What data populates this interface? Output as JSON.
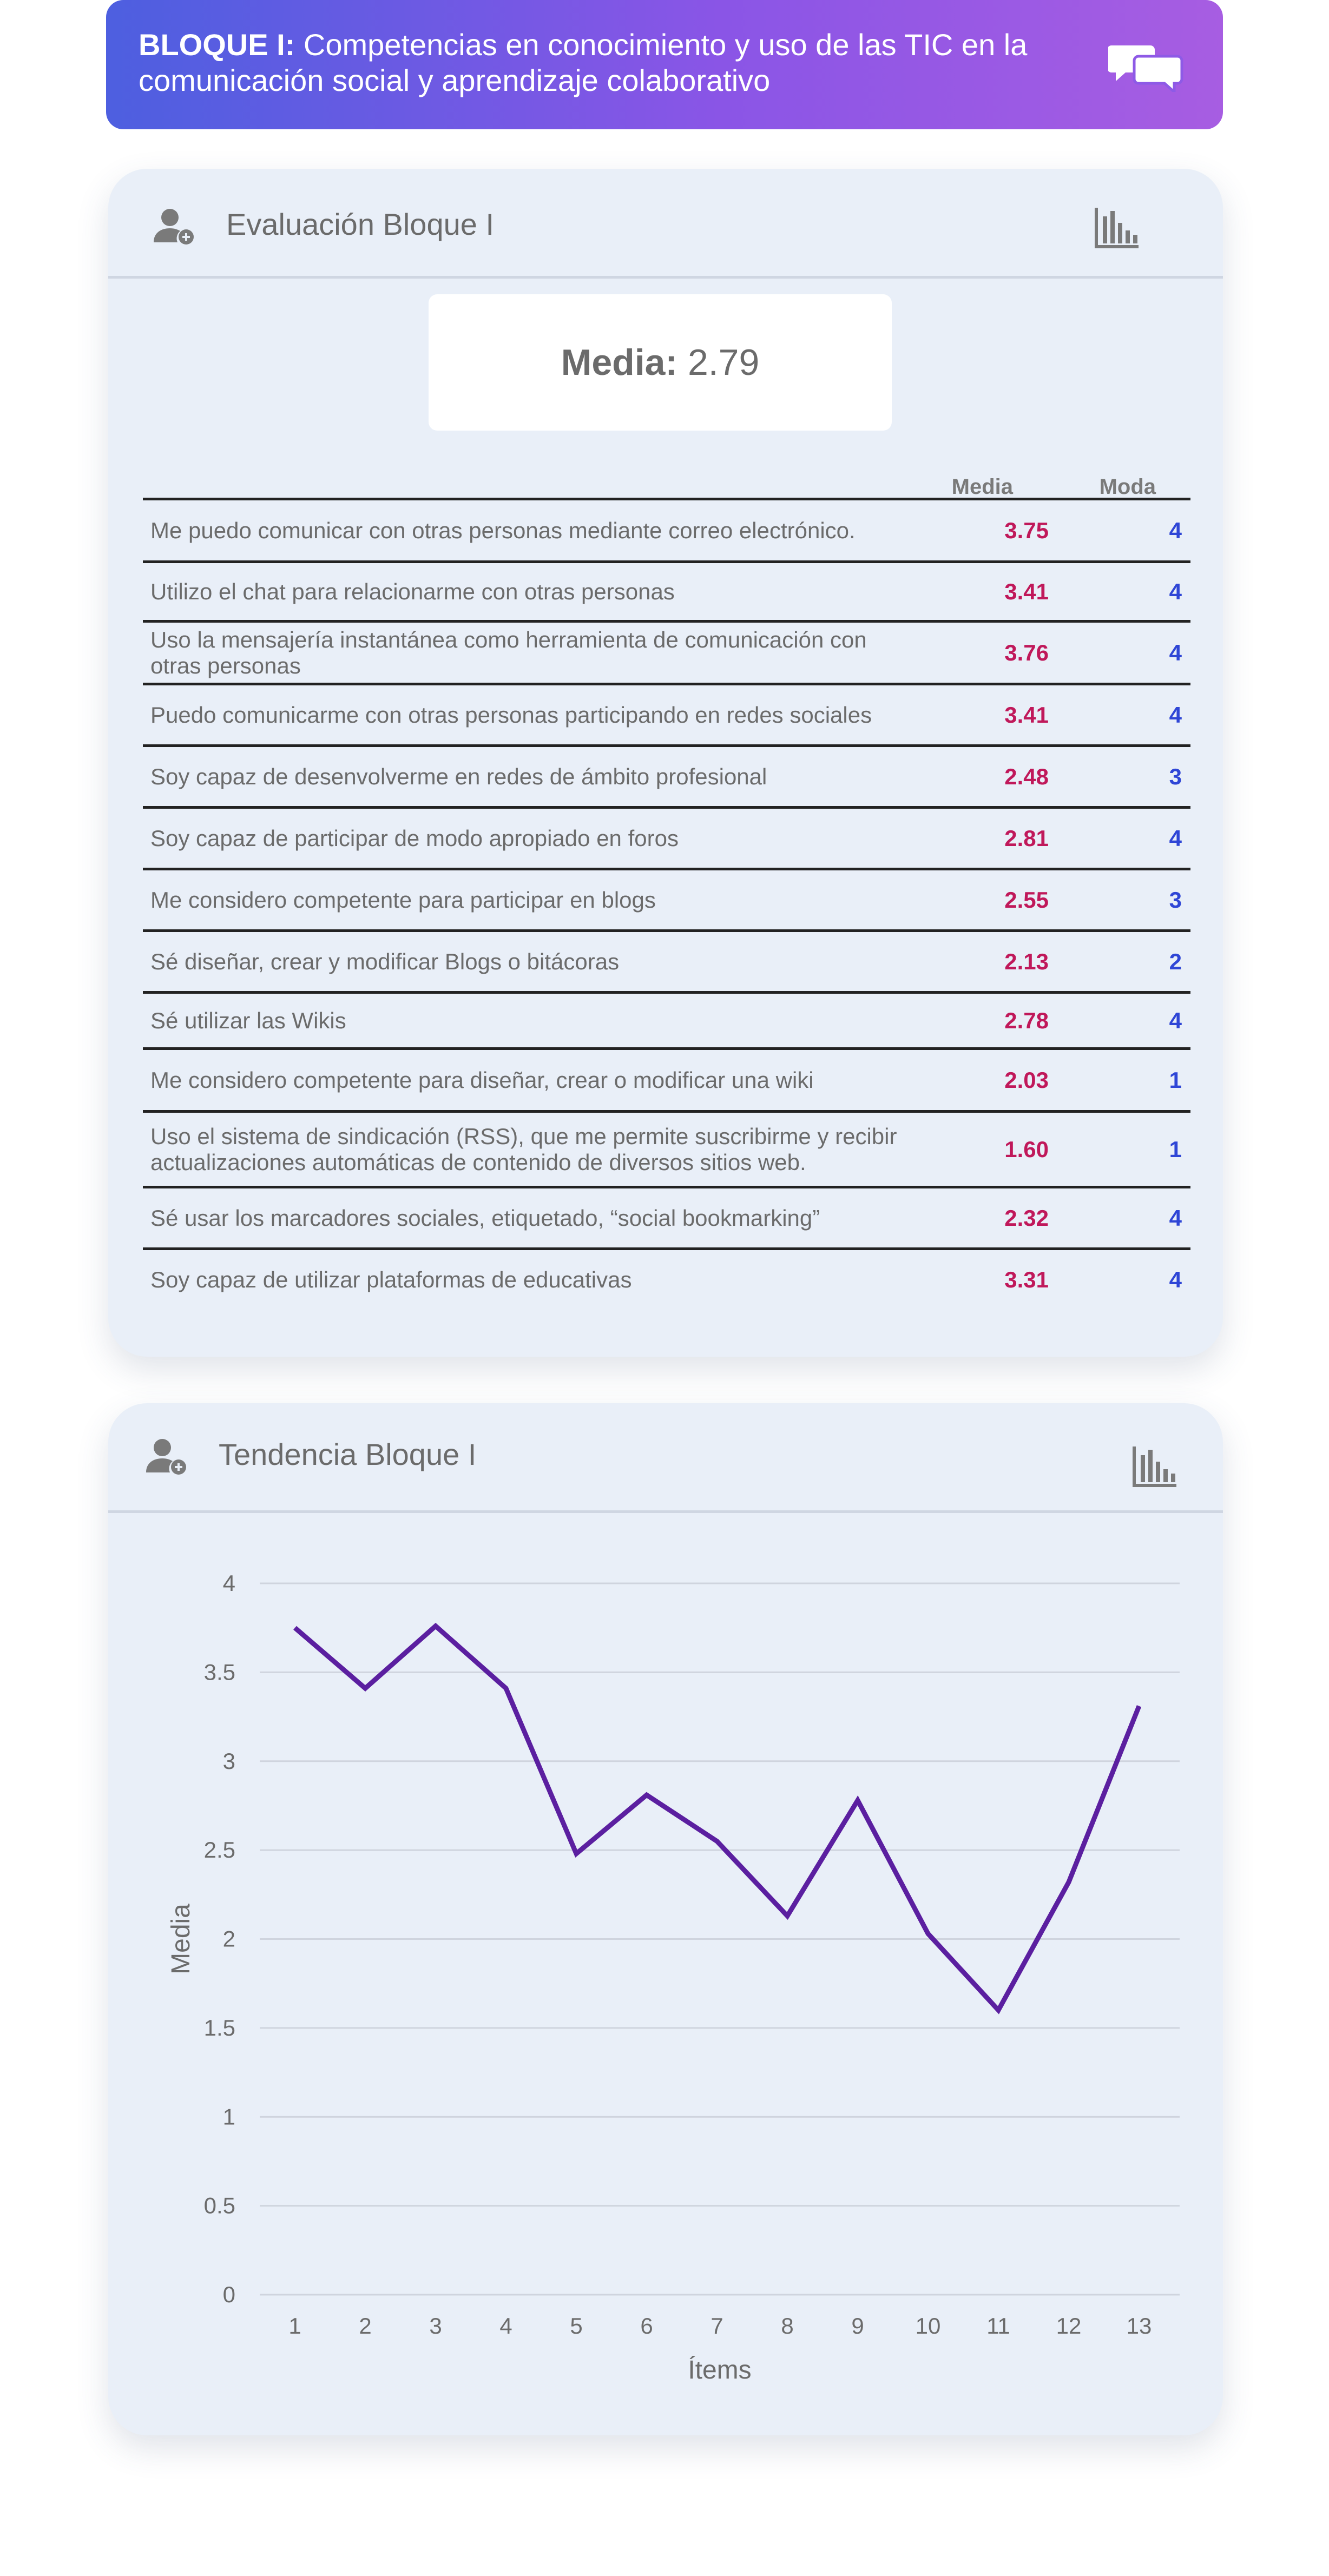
{
  "banner": {
    "bold": "BLOQUE I:",
    "text": "Competencias en conocimiento y uso de las TIC en la comunicación social y aprendizaje colaborativo",
    "icon": "chat-bubbles-icon"
  },
  "card1": {
    "title": "Evaluación Bloque I",
    "mean_label": "Media:",
    "mean_value": "2.79",
    "col_media": "Media",
    "col_moda": "Moda",
    "rows": [
      {
        "label": "Me puedo comunicar con otras personas mediante correo electrónico.",
        "media": "3.75",
        "moda": "4"
      },
      {
        "label": "Utilizo el chat para relacionarme con otras personas",
        "media": "3.41",
        "moda": "4"
      },
      {
        "label": "Uso la mensajería instantánea como herramienta de comunicación con otras personas",
        "media": "3.76",
        "moda": "4"
      },
      {
        "label": "Puedo comunicarme con otras personas participando en redes sociales",
        "media": "3.41",
        "moda": "4"
      },
      {
        "label": "Soy capaz de desenvolverme en redes de ámbito profesional",
        "media": "2.48",
        "moda": "3"
      },
      {
        "label": "Soy capaz de participar de modo apropiado en foros",
        "media": "2.81",
        "moda": "4"
      },
      {
        "label": "Me considero competente para participar en blogs",
        "media": "2.55",
        "moda": "3"
      },
      {
        "label": "Sé diseñar, crear y modificar Blogs o bitácoras",
        "media": "2.13",
        "moda": "2"
      },
      {
        "label": "Sé utilizar las Wikis",
        "media": "2.78",
        "moda": "4"
      },
      {
        "label": "Me considero competente para diseñar, crear o modificar una wiki",
        "media": "2.03",
        "moda": "1"
      },
      {
        "label": "Uso el sistema de sindicación (RSS), que me permite suscribirme y recibir actualizaciones automáticas de contenido de diversos sitios web.",
        "media": "1.60",
        "moda": "1"
      },
      {
        "label": "Sé usar los marcadores sociales, etiquetado, “social bookmarking”",
        "media": "2.32",
        "moda": "4"
      },
      {
        "label": "Soy capaz de utilizar plataformas de educativas",
        "media": "3.31",
        "moda": "4"
      }
    ]
  },
  "card2": {
    "title": "Tendencia Bloque I"
  },
  "colors": {
    "banner_start": "#4d5fe0",
    "banner_end": "#a75de2",
    "media": "#c0185a",
    "moda": "#2f46d6",
    "line": "#5b1fa0",
    "card_bg": "#e9eff8"
  },
  "chart_data": {
    "type": "line",
    "title": "",
    "xlabel": "Ítems",
    "ylabel": "Media",
    "x": [
      1,
      2,
      3,
      4,
      5,
      6,
      7,
      8,
      9,
      10,
      11,
      12,
      13
    ],
    "y_ticks": [
      "0",
      "0.5",
      "1",
      "1.5",
      "2",
      "2.5",
      "3",
      "3.5",
      "4"
    ],
    "ylim": [
      0,
      4
    ],
    "grid": true,
    "series": [
      {
        "values": [
          3.75,
          3.41,
          3.76,
          3.41,
          2.48,
          2.81,
          2.55,
          2.13,
          2.78,
          2.03,
          1.6,
          2.32,
          3.31
        ]
      }
    ]
  }
}
